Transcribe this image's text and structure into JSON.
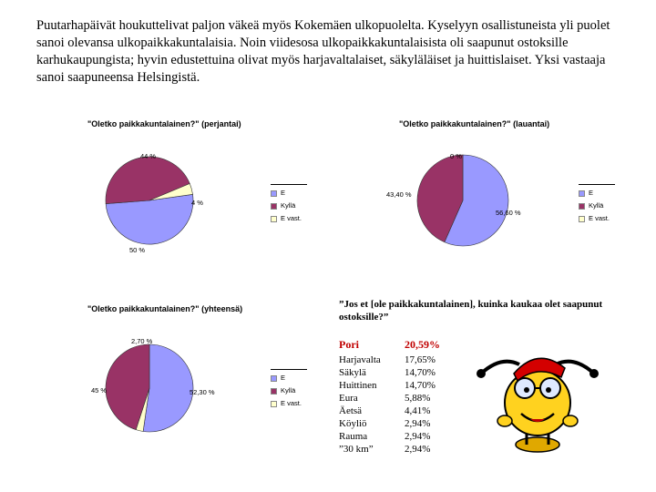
{
  "intro_text": "Puutarhapäivät houkuttelivat paljon väkeä myös Kokemäen ulkopuolelta. Kyselyyn osallistuneista yli puolet sanoi olevansa ulkopaikkakuntalaisia. Noin viidesosa ulkopaikkakuntalaisista oli saapunut ostoksille karhukaupungista; hyvin edustettuina olivat myös harjavaltalaiset, säkyläläiset ja huittislaiset. Yksi vastaaja sanoi saapuneensa Helsingistä.",
  "colors": {
    "E": "#9999ff",
    "Kylla": "#993366",
    "Evast": "#ffffcc"
  },
  "chart_data": [
    {
      "type": "pie",
      "title": "\"Oletko paikkakuntalainen?\" (perjantai)",
      "categories": [
        "E",
        "Kyllä",
        "E vast."
      ],
      "values": [
        50,
        44,
        4
      ],
      "value_labels": [
        "50 %",
        "44 %",
        "4 %"
      ],
      "legend_position": "right"
    },
    {
      "type": "pie",
      "title": "\"Oletko paikkakuntalainen?\" (lauantai)",
      "categories": [
        "E",
        "Kyllä",
        "E vast."
      ],
      "values": [
        56.6,
        43.4,
        0
      ],
      "value_labels": [
        "56,60 %",
        "43,40 %",
        "0 %"
      ],
      "legend_position": "right"
    },
    {
      "type": "pie",
      "title": "\"Oletko paikkakuntalainen?\" (yhteensä)",
      "categories": [
        "E",
        "Kyllä",
        "E vast."
      ],
      "values": [
        52.3,
        45,
        2.7
      ],
      "value_labels": [
        "52,30 %",
        "45 %",
        "2,70 %"
      ],
      "legend_position": "right"
    }
  ],
  "distances": {
    "title": "”Jos et [ole paikkakuntalainen], kuinka kaukaa olet saapunut ostoksille?”",
    "rows": [
      {
        "place": "Pori",
        "value": "20,59%"
      },
      {
        "place": "Harjavalta",
        "value": "17,65%"
      },
      {
        "place": "Säkylä",
        "value": "14,70%"
      },
      {
        "place": "Huittinen",
        "value": "14,70%"
      },
      {
        "place": "Eura",
        "value": "5,88%"
      },
      {
        "place": "Äetsä",
        "value": "4,41%"
      },
      {
        "place": "Köyliö",
        "value": "2,94%"
      },
      {
        "place": "Rauma",
        "value": "2,94%"
      },
      {
        "place": "”30 km”",
        "value": "2,94%"
      }
    ]
  }
}
